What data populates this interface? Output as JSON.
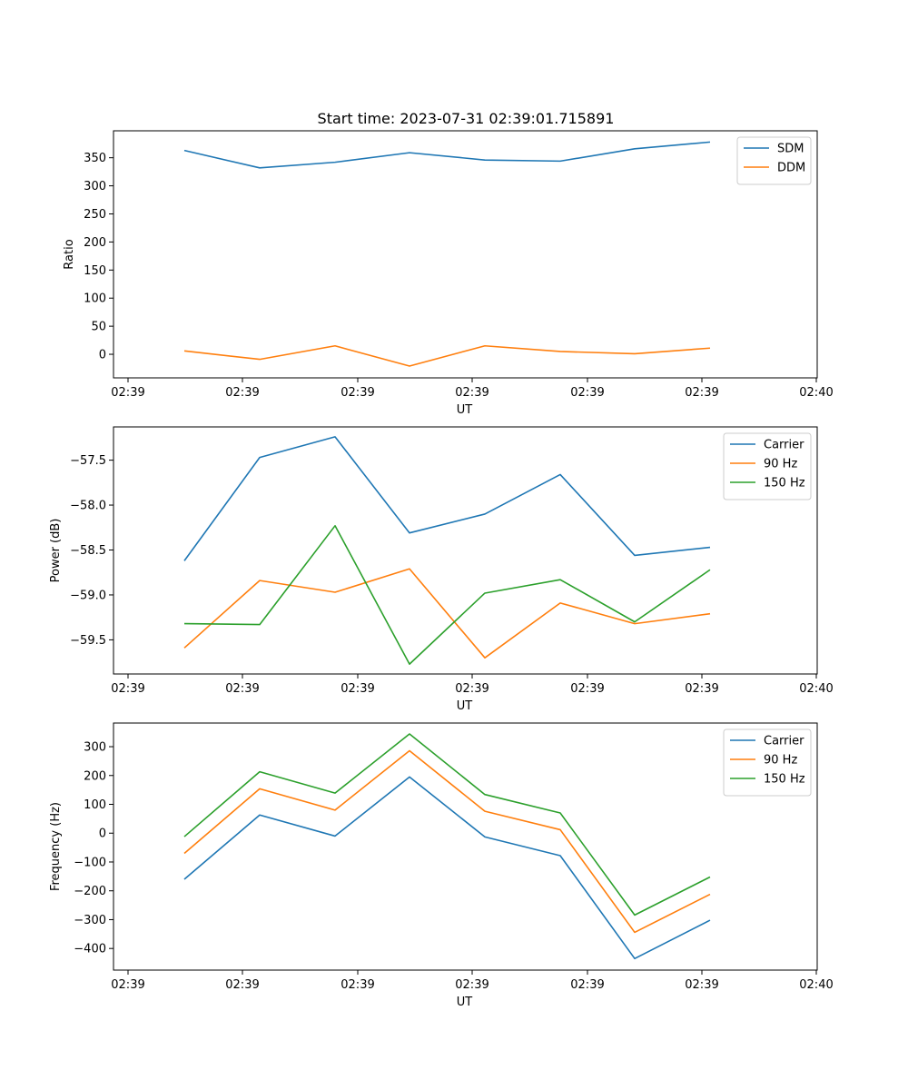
{
  "figure_title": "Start time: 2023-07-31 02:39:01.715891",
  "chart_data": [
    {
      "type": "line",
      "title": "Start time: 2023-07-31 02:39:01.715891",
      "xlabel": "UT",
      "ylabel": "Ratio",
      "x_tick_labels": [
        "02:39",
        "02:39",
        "02:39",
        "02:39",
        "02:39",
        "02:39",
        "02:40"
      ],
      "y_ticks": [
        0,
        50,
        100,
        150,
        200,
        250,
        300,
        350
      ],
      "y_tick_labels": [
        "0",
        "50",
        "100",
        "150",
        "200",
        "250",
        "300",
        "350"
      ],
      "ylim": [
        -42,
        398
      ],
      "legend": "top-right",
      "x": [
        1,
        2,
        3,
        4,
        5,
        6,
        7,
        8
      ],
      "series": [
        {
          "name": "SDM",
          "color": "#1f77b4",
          "values": [
            363,
            332,
            342,
            359,
            346,
            344,
            366,
            378
          ]
        },
        {
          "name": "DDM",
          "color": "#ff7f0e",
          "values": [
            6,
            -9,
            15,
            -21,
            15,
            5,
            1,
            11
          ]
        }
      ]
    },
    {
      "type": "line",
      "title": "",
      "xlabel": "UT",
      "ylabel": "Power (dB)",
      "x_tick_labels": [
        "02:39",
        "02:39",
        "02:39",
        "02:39",
        "02:39",
        "02:39",
        "02:40"
      ],
      "y_ticks": [
        -57.5,
        -58.0,
        -58.5,
        -59.0,
        -59.5
      ],
      "y_tick_labels": [
        "−57.5",
        "−58.0",
        "−58.5",
        "−59.0",
        "−59.5"
      ],
      "ylim": [
        -59.88,
        -57.13
      ],
      "legend": "top-right",
      "x": [
        1,
        2,
        3,
        4,
        5,
        6,
        7,
        8
      ],
      "series": [
        {
          "name": "Carrier",
          "color": "#1f77b4",
          "values": [
            -58.62,
            -57.47,
            -57.24,
            -58.31,
            -58.1,
            -57.66,
            -58.56,
            -58.47
          ]
        },
        {
          "name": "90 Hz",
          "color": "#ff7f0e",
          "values": [
            -59.59,
            -58.84,
            -58.97,
            -58.71,
            -59.7,
            -59.09,
            -59.32,
            -59.21
          ]
        },
        {
          "name": "150 Hz",
          "color": "#2ca02c",
          "values": [
            -59.32,
            -59.33,
            -58.23,
            -59.77,
            -58.98,
            -58.83,
            -59.3,
            -58.72
          ]
        }
      ]
    },
    {
      "type": "line",
      "title": "",
      "xlabel": "UT",
      "ylabel": "Frequency (Hz)",
      "x_tick_labels": [
        "02:39",
        "02:39",
        "02:39",
        "02:39",
        "02:39",
        "02:39",
        "02:40"
      ],
      "y_ticks": [
        300,
        200,
        100,
        0,
        -100,
        -200,
        -300,
        -400
      ],
      "y_tick_labels": [
        "300",
        "200",
        "100",
        "0",
        "−100",
        "−200",
        "−300",
        "−400"
      ],
      "ylim": [
        -475,
        382
      ],
      "legend": "top-right",
      "x": [
        1,
        2,
        3,
        4,
        5,
        6,
        7,
        8
      ],
      "series": [
        {
          "name": "Carrier",
          "color": "#1f77b4",
          "values": [
            -160,
            63,
            -10,
            195,
            -13,
            -78,
            -435,
            -302
          ]
        },
        {
          "name": "90 Hz",
          "color": "#ff7f0e",
          "values": [
            -70,
            154,
            80,
            286,
            76,
            12,
            -344,
            -212
          ]
        },
        {
          "name": "150 Hz",
          "color": "#2ca02c",
          "values": [
            -12,
            213,
            139,
            344,
            134,
            70,
            -284,
            -152
          ]
        }
      ]
    }
  ]
}
